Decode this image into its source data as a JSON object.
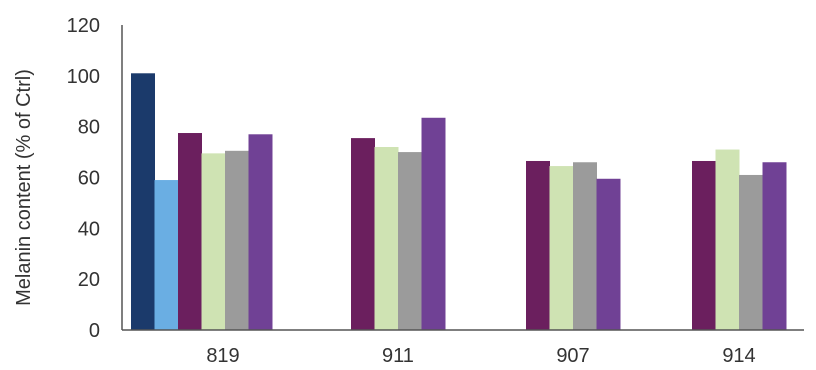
{
  "chart_data": {
    "type": "bar",
    "title": "",
    "xlabel": "",
    "ylabel": "Melanin content (% of Ctrl)",
    "ylim": [
      0,
      120
    ],
    "yticks": [
      0,
      20,
      40,
      60,
      80,
      100,
      120
    ],
    "grid": false,
    "legend": "none",
    "categories": [
      "819",
      "911",
      "907",
      "914"
    ],
    "series": [
      {
        "color": "#1b3a6b",
        "values": [
          101,
          null,
          null,
          null
        ]
      },
      {
        "color": "#6aaee3",
        "values": [
          59,
          null,
          null,
          null
        ]
      },
      {
        "color": "#6b1f5e",
        "values": [
          77.5,
          75.5,
          66.5,
          66.5
        ]
      },
      {
        "color": "#cfe3b3",
        "values": [
          69.5,
          72,
          64.5,
          71
        ]
      },
      {
        "color": "#9b9b9b",
        "values": [
          70.5,
          70,
          66,
          61
        ]
      },
      {
        "color": "#704195",
        "values": [
          77,
          83.5,
          59.5,
          66
        ]
      }
    ]
  }
}
